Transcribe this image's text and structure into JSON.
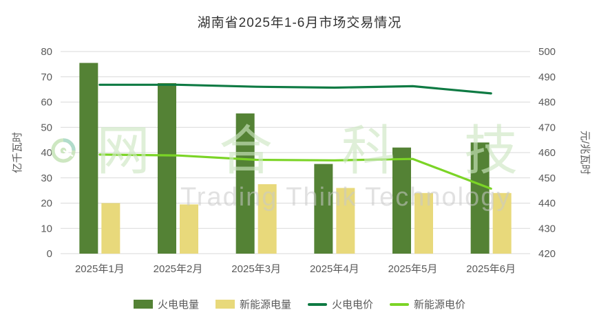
{
  "title": "湖南省2025年1-6月市场交易情况",
  "watermark": {
    "cn": "网合科技",
    "en": "Trading Think Technology"
  },
  "chart_data": {
    "type": "combo-bar-line",
    "categories": [
      "2025年1月",
      "2025年2月",
      "2025年3月",
      "2025年4月",
      "2025年5月",
      "2025年6月"
    ],
    "bar_series": [
      {
        "key": "thermal-volume",
        "name": "火电电量",
        "color": "#548235",
        "values": [
          75.5,
          67.5,
          55.5,
          35.5,
          42,
          44
        ]
      },
      {
        "key": "new-energy-volume",
        "name": "新能源电量",
        "color": "#e8d97b",
        "values": [
          20,
          19.5,
          27.5,
          26,
          24,
          24
        ]
      }
    ],
    "line_series": [
      {
        "key": "thermal-price",
        "name": "火电电价",
        "color": "#0e7a43",
        "values": [
          478.5,
          478.5,
          477.8,
          477.5,
          478,
          475.5
        ]
      },
      {
        "key": "new-energy-price",
        "name": "新能源电价",
        "color": "#7bd426",
        "values": [
          454.3,
          454,
          452.5,
          452.3,
          452.8,
          442.5
        ]
      }
    ],
    "left_axis": {
      "label": "亿千瓦时",
      "min": 0,
      "max": 80,
      "step": 10
    },
    "right_axis": {
      "label": "元/兆瓦时",
      "min": 420,
      "max": 490,
      "step": 10
    },
    "grid": true,
    "legend_position": "bottom"
  }
}
